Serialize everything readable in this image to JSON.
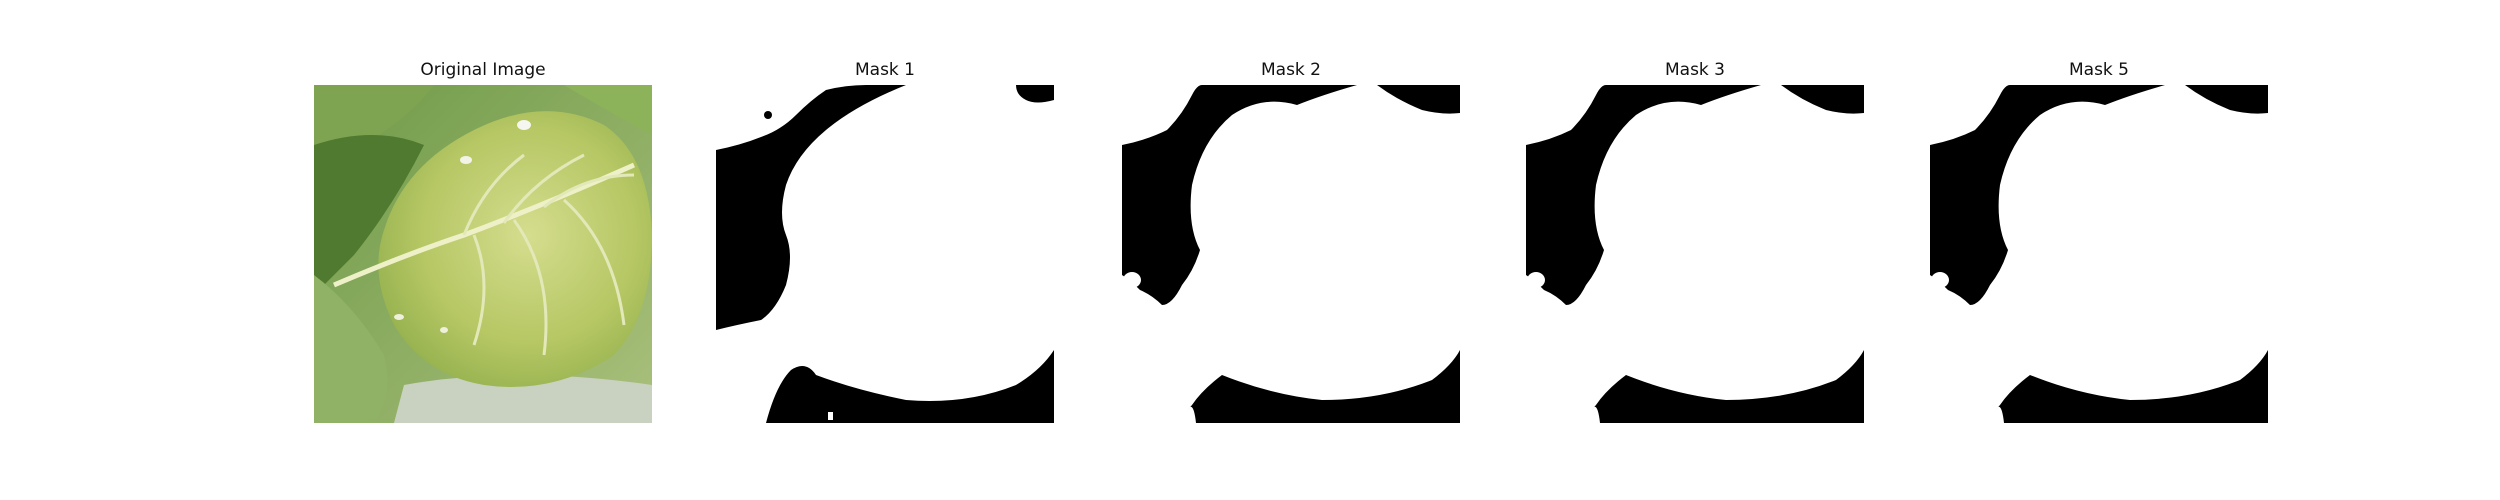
{
  "panels": [
    {
      "title": "Original Image",
      "kind": "photo",
      "description": "green leaf with pale yellow veins"
    },
    {
      "title": "Mask 1",
      "kind": "mask"
    },
    {
      "title": "Mask 2",
      "kind": "mask"
    },
    {
      "title": "Mask 3",
      "kind": "mask"
    },
    {
      "title": "Mask 5",
      "kind": "mask"
    }
  ],
  "colors": {
    "mask_foreground": "#ffffff",
    "mask_background": "#000000",
    "leaf_main": "#b7c86a",
    "leaf_dark": "#5f8a3c",
    "vein": "#e8ecc0"
  }
}
